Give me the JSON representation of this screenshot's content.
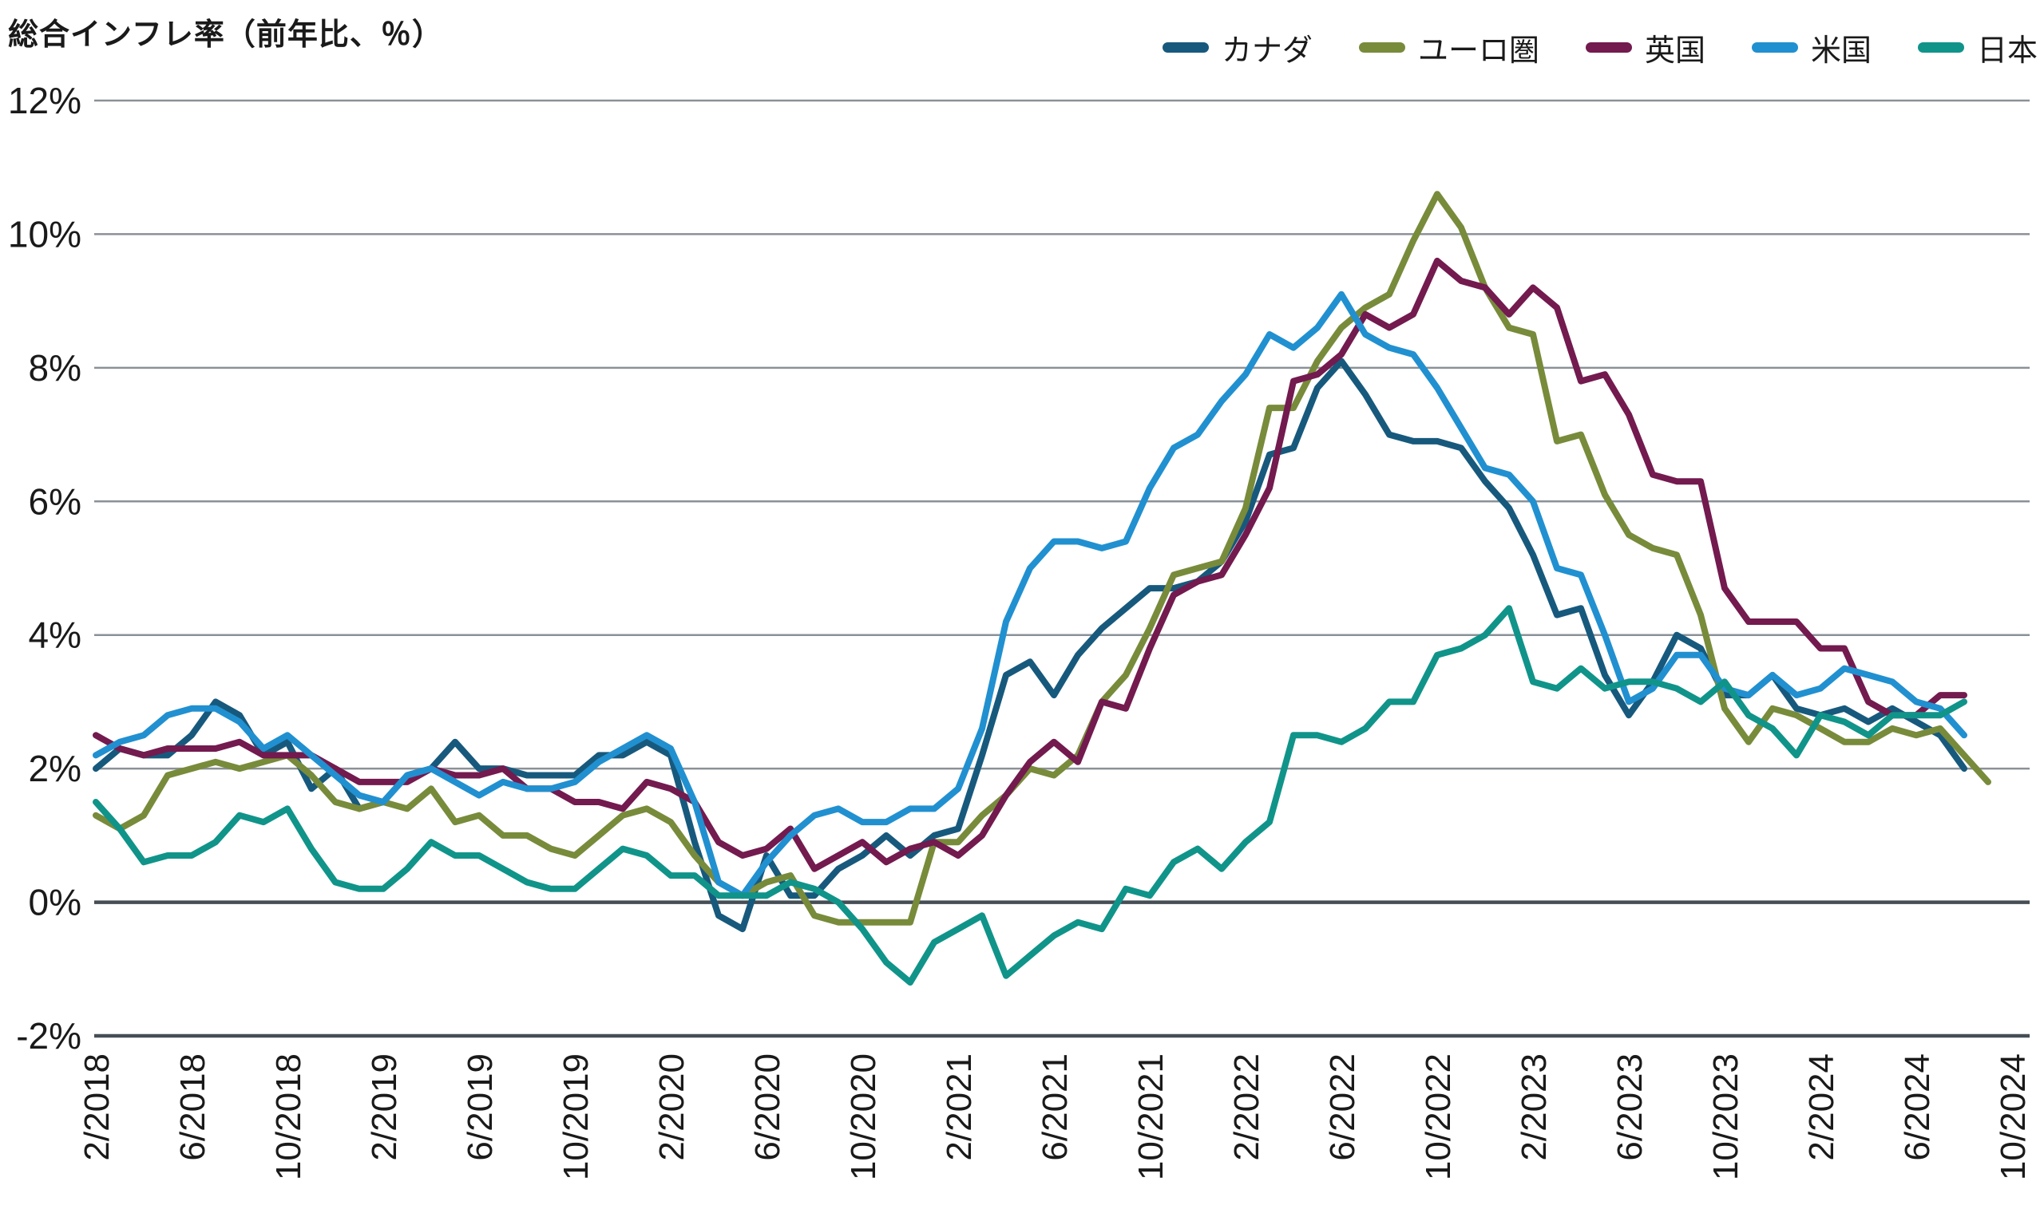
{
  "title": "総合インフレ率（前年比、％）",
  "chart_data": {
    "type": "line",
    "title": "総合インフレ率（前年比、％）",
    "xlabel": "",
    "ylabel": "",
    "x_axis": {
      "start": "2/2018",
      "end": "10/2024",
      "frequency": "monthly",
      "ticks_every_n_points": 4,
      "tick_labels": [
        "2/2018",
        "6/2018",
        "10/2018",
        "2/2019",
        "6/2019",
        "10/2019",
        "2/2020",
        "6/2020",
        "10/2020",
        "2/2021",
        "6/2021",
        "10/2021",
        "2/2022",
        "6/2022",
        "10/2022",
        "2/2023",
        "6/2023",
        "10/2023",
        "2/2024",
        "6/2024",
        "10/2024"
      ]
    },
    "y_axis": {
      "min": -2,
      "max": 12,
      "tick_values": [
        12,
        10,
        8,
        6,
        4,
        2,
        0,
        -2
      ],
      "tick_labels": [
        "12%",
        "10%",
        "8%",
        "6%",
        "4%",
        "2%",
        "0%",
        "-2%"
      ],
      "grid": true,
      "strong_lines_at": [
        0,
        -2
      ]
    },
    "legend_position": "top-right",
    "series": [
      {
        "key": "canada",
        "name": "カナダ",
        "color": "#17597D",
        "values": [
          2.0,
          2.3,
          2.2,
          2.2,
          2.5,
          3.0,
          2.8,
          2.2,
          2.4,
          1.7,
          2.0,
          1.4,
          1.5,
          1.9,
          2.0,
          2.4,
          2.0,
          2.0,
          1.9,
          1.9,
          1.9,
          2.2,
          2.2,
          2.4,
          2.2,
          0.9,
          -0.2,
          -0.4,
          0.7,
          0.1,
          0.1,
          0.5,
          0.7,
          1.0,
          0.7,
          1.0,
          1.1,
          2.2,
          3.4,
          3.6,
          3.1,
          3.7,
          4.1,
          4.4,
          4.7,
          4.7,
          4.8,
          5.1,
          5.7,
          6.7,
          6.8,
          7.7,
          8.1,
          7.6,
          7.0,
          6.9,
          6.9,
          6.8,
          6.3,
          5.9,
          5.2,
          4.3,
          4.4,
          3.4,
          2.8,
          3.3,
          4.0,
          3.8,
          3.1,
          3.1,
          3.4,
          2.9,
          2.8,
          2.9,
          2.7,
          2.9,
          2.7,
          2.5,
          2.0
        ]
      },
      {
        "key": "eurozone",
        "name": "ユーロ圏",
        "color": "#788B3B",
        "values": [
          1.3,
          1.1,
          1.3,
          1.9,
          2.0,
          2.1,
          2.0,
          2.1,
          2.2,
          1.9,
          1.5,
          1.4,
          1.5,
          1.4,
          1.7,
          1.2,
          1.3,
          1.0,
          1.0,
          0.8,
          0.7,
          1.0,
          1.3,
          1.4,
          1.2,
          0.7,
          0.3,
          0.1,
          0.3,
          0.4,
          -0.2,
          -0.3,
          -0.3,
          -0.3,
          -0.3,
          0.9,
          0.9,
          1.3,
          1.6,
          2.0,
          1.9,
          2.2,
          3.0,
          3.4,
          4.1,
          4.9,
          5.0,
          5.1,
          5.9,
          7.4,
          7.4,
          8.1,
          8.6,
          8.9,
          9.1,
          9.9,
          10.6,
          10.1,
          9.2,
          8.6,
          8.5,
          6.9,
          7.0,
          6.1,
          5.5,
          5.3,
          5.2,
          4.3,
          2.9,
          2.4,
          2.9,
          2.8,
          2.6,
          2.4,
          2.4,
          2.6,
          2.5,
          2.6,
          2.2,
          1.8
        ]
      },
      {
        "key": "uk",
        "name": "英国",
        "color": "#731A4F",
        "values": [
          2.5,
          2.3,
          2.2,
          2.3,
          2.3,
          2.3,
          2.4,
          2.2,
          2.2,
          2.2,
          2.0,
          1.8,
          1.8,
          1.8,
          2.0,
          1.9,
          1.9,
          2.0,
          1.7,
          1.7,
          1.5,
          1.5,
          1.4,
          1.8,
          1.7,
          1.5,
          0.9,
          0.7,
          0.8,
          1.1,
          0.5,
          0.7,
          0.9,
          0.6,
          0.8,
          0.9,
          0.7,
          1.0,
          1.6,
          2.1,
          2.4,
          2.1,
          3.0,
          2.9,
          3.8,
          4.6,
          4.8,
          4.9,
          5.5,
          6.2,
          7.8,
          7.9,
          8.2,
          8.8,
          8.6,
          8.8,
          9.6,
          9.3,
          9.2,
          8.8,
          9.2,
          8.9,
          7.8,
          7.9,
          7.3,
          6.4,
          6.3,
          6.3,
          4.7,
          4.2,
          4.2,
          4.2,
          3.8,
          3.8,
          3.0,
          2.8,
          2.8,
          3.1,
          3.1
        ]
      },
      {
        "key": "us",
        "name": "米国",
        "color": "#2190D0",
        "values": [
          2.2,
          2.4,
          2.5,
          2.8,
          2.9,
          2.9,
          2.7,
          2.3,
          2.5,
          2.2,
          1.9,
          1.6,
          1.5,
          1.9,
          2.0,
          1.8,
          1.6,
          1.8,
          1.7,
          1.7,
          1.8,
          2.1,
          2.3,
          2.5,
          2.3,
          1.5,
          0.3,
          0.1,
          0.6,
          1.0,
          1.3,
          1.4,
          1.2,
          1.2,
          1.4,
          1.4,
          1.7,
          2.6,
          4.2,
          5.0,
          5.4,
          5.4,
          5.3,
          5.4,
          6.2,
          6.8,
          7.0,
          7.5,
          7.9,
          8.5,
          8.3,
          8.6,
          9.1,
          8.5,
          8.3,
          8.2,
          7.7,
          7.1,
          6.5,
          6.4,
          6.0,
          5.0,
          4.9,
          4.0,
          3.0,
          3.2,
          3.7,
          3.7,
          3.2,
          3.1,
          3.4,
          3.1,
          3.2,
          3.5,
          3.4,
          3.3,
          3.0,
          2.9,
          2.5
        ]
      },
      {
        "key": "japan",
        "name": "日本",
        "color": "#10948A",
        "values": [
          1.5,
          1.1,
          0.6,
          0.7,
          0.7,
          0.9,
          1.3,
          1.2,
          1.4,
          0.8,
          0.3,
          0.2,
          0.2,
          0.5,
          0.9,
          0.7,
          0.7,
          0.5,
          0.3,
          0.2,
          0.2,
          0.5,
          0.8,
          0.7,
          0.4,
          0.4,
          0.1,
          0.1,
          0.1,
          0.3,
          0.2,
          0.0,
          -0.4,
          -0.9,
          -1.2,
          -0.6,
          -0.4,
          -0.2,
          -1.1,
          -0.8,
          -0.5,
          -0.3,
          -0.4,
          0.2,
          0.1,
          0.6,
          0.8,
          0.5,
          0.9,
          1.2,
          2.5,
          2.5,
          2.4,
          2.6,
          3.0,
          3.0,
          3.7,
          3.8,
          4.0,
          4.4,
          3.3,
          3.2,
          3.5,
          3.2,
          3.3,
          3.3,
          3.2,
          3.0,
          3.3,
          2.8,
          2.6,
          2.2,
          2.8,
          2.7,
          2.5,
          2.8,
          2.8,
          2.8,
          3.0
        ]
      }
    ]
  },
  "colors": {
    "background": "#FFFFFF",
    "grid": "#8A9197",
    "axis_strong": "#454D55",
    "text": "#1A1A1A"
  }
}
